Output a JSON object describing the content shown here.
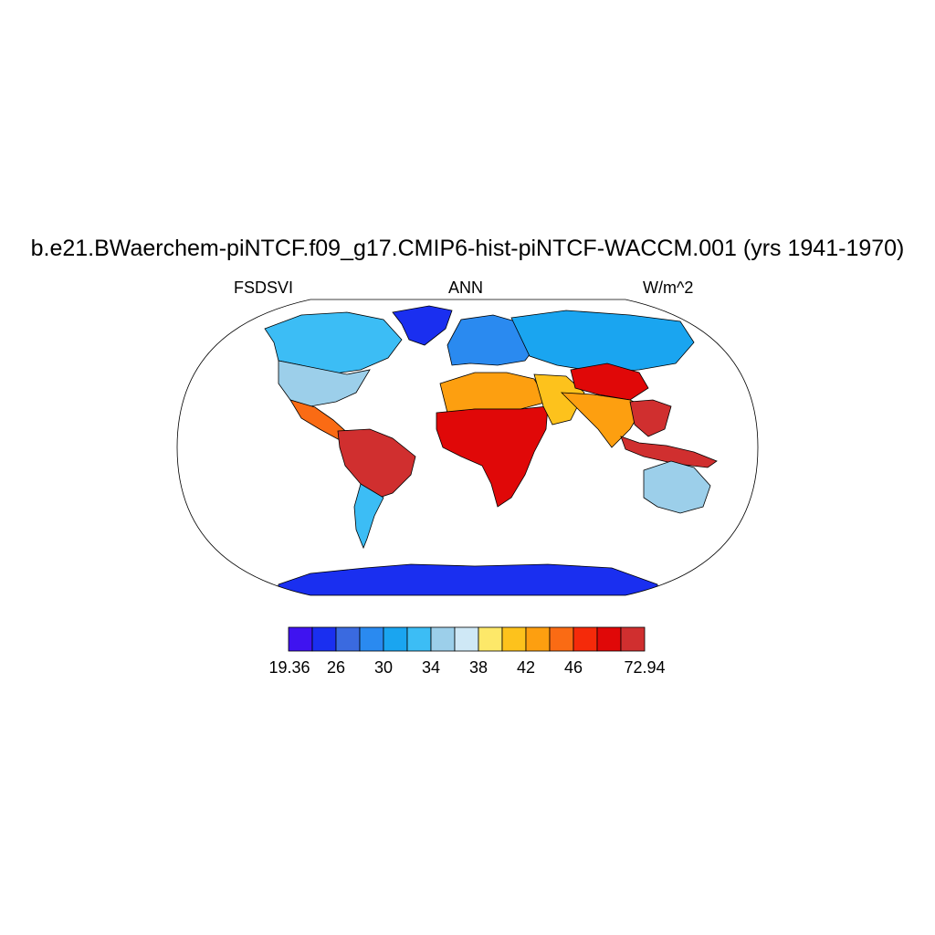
{
  "title": "b.e21.BWaerchem-piNTCF.f09_g17.CMIP6-hist-piNTCF-WACCM.001 (yrs 1941-1970)",
  "subtitle_left": "FSDSVI",
  "subtitle_center": "ANN",
  "subtitle_right": "W/m^2",
  "projection": "Robinson",
  "colorbar": {
    "colors": [
      "#3f13f0",
      "#1a2ff0",
      "#3a6ae0",
      "#2a8af0",
      "#1aa5f0",
      "#3cbdf5",
      "#9ccfea",
      "#cfe8f6",
      "#fde869",
      "#fdc21c",
      "#fd9f10",
      "#fa6b14",
      "#f52a0a",
      "#e00808",
      "#d02f2f"
    ],
    "labels": [
      "19.36",
      "26",
      "30",
      "34",
      "38",
      "42",
      "46",
      "72.94"
    ]
  },
  "regions": [
    {
      "name": "canada",
      "color": "#3cbdf5"
    },
    {
      "name": "greenland",
      "color": "#1a2ff0"
    },
    {
      "name": "usa",
      "color": "#9ccfea"
    },
    {
      "name": "mexico",
      "color": "#fa6b14"
    },
    {
      "name": "south-america-north",
      "color": "#d02f2f"
    },
    {
      "name": "south-america-south",
      "color": "#3cbdf5"
    },
    {
      "name": "europe",
      "color": "#2a8af0"
    },
    {
      "name": "siberia",
      "color": "#1aa5f0"
    },
    {
      "name": "africa-north",
      "color": "#fd9f10"
    },
    {
      "name": "africa-central",
      "color": "#e00808"
    },
    {
      "name": "middle-east",
      "color": "#fdc21c"
    },
    {
      "name": "tibet",
      "color": "#e00808"
    },
    {
      "name": "india",
      "color": "#fd9f10"
    },
    {
      "name": "se-asia",
      "color": "#d02f2f"
    },
    {
      "name": "indonesia",
      "color": "#d02f2f"
    },
    {
      "name": "australia",
      "color": "#9ccfea"
    },
    {
      "name": "antarctica",
      "color": "#1a2ff0"
    }
  ]
}
